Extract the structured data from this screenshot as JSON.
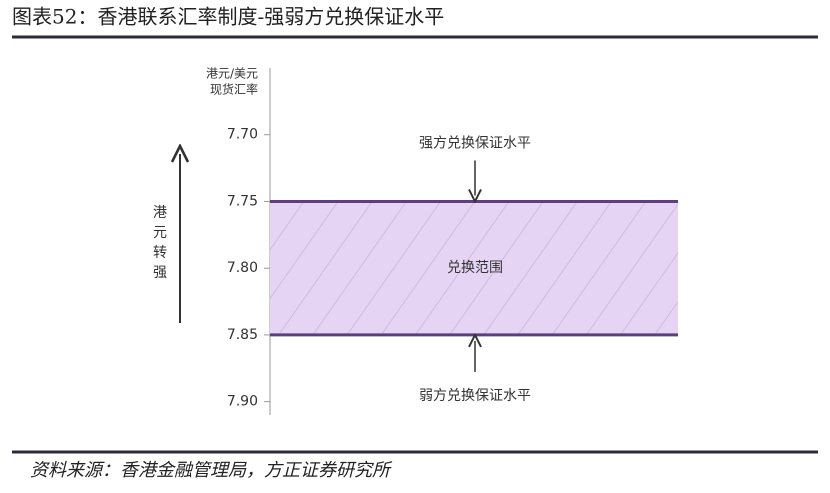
{
  "chart_data": {
    "type": "band",
    "title": "图表52：香港联系汇率制度-强弱方兑换保证水平",
    "y_label": [
      "港元/美元",
      "现货汇率"
    ],
    "ylim": [
      7.65,
      7.91
    ],
    "inverted": true,
    "yticks": [
      {
        "value": 7.7,
        "label": "7.70"
      },
      7.75,
      {
        "value": 7.8,
        "label": "7.80"
      },
      7.85,
      {
        "value": 7.9,
        "label": "7.90"
      }
    ],
    "band": [
      7.75,
      7.85
    ],
    "band_label": "兑换范围",
    "color": "#e6d4f4",
    "edge_color": "#5e3f7e",
    "upper_label": "强方兑换保证水平",
    "lower_label": "弱方兑换保证水平",
    "direction_label": [
      "港",
      "元",
      "转",
      "强"
    ],
    "source": "资料来源：香港金融管理局，方正证券研究所"
  }
}
